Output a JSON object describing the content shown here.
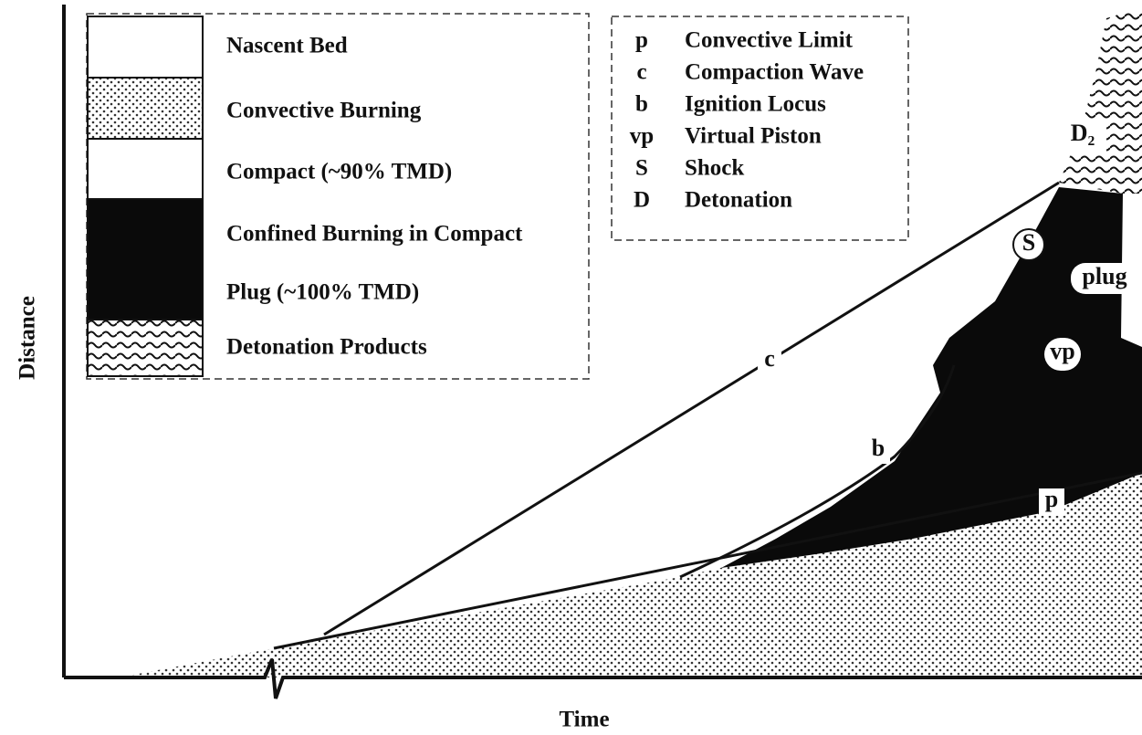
{
  "axes": {
    "x_label": "Time",
    "y_label": "Distance"
  },
  "legend": [
    "Nascent Bed",
    "Convective Burning",
    "Compact (~90% TMD)",
    "Confined Burning in Compact",
    "Plug (~100% TMD)",
    "Detonation Products"
  ],
  "key": [
    {
      "symbol": "p",
      "label": "Convective Limit"
    },
    {
      "symbol": "c",
      "label": "Compaction Wave"
    },
    {
      "symbol": "b",
      "label": "Ignition Locus"
    },
    {
      "symbol": "vp",
      "label": "Virtual Piston"
    },
    {
      "symbol": "S",
      "label": "Shock"
    },
    {
      "symbol": "D",
      "label": "Detonation"
    }
  ],
  "annotations": {
    "c": "c",
    "b": "b",
    "S": "S",
    "plug": "plug",
    "vp": "vp",
    "p": "p",
    "D2": "D₂"
  }
}
